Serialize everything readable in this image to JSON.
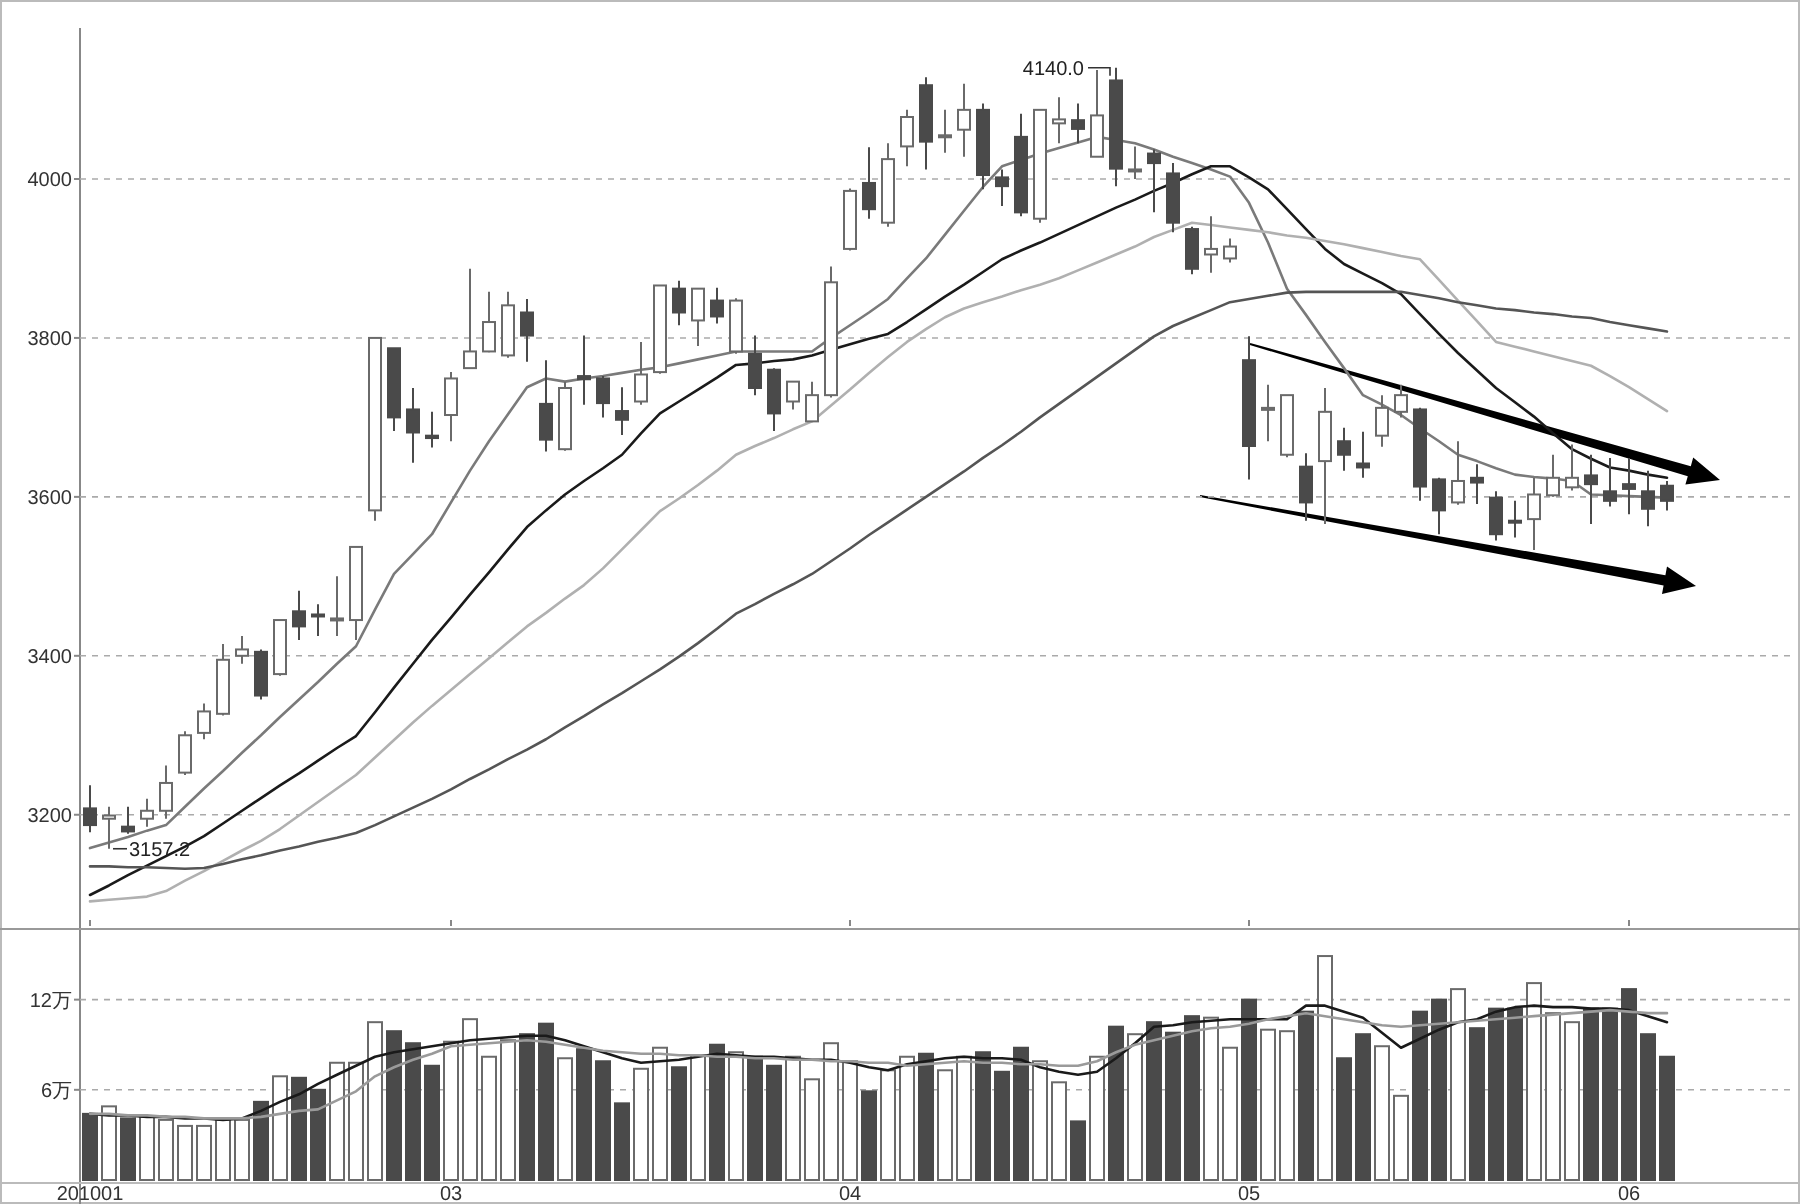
{
  "chart_data": [
    {
      "type": "candlestick",
      "ylim": [
        3060,
        4190
      ],
      "yticks": [
        3200,
        3400,
        3600,
        3800,
        4000
      ],
      "grid": "y",
      "tick_labels": "y",
      "categories": [
        "201001",
        null,
        null,
        null,
        null,
        null,
        null,
        null,
        null,
        null,
        null,
        null,
        null,
        null,
        null,
        null,
        null,
        null,
        null,
        "03",
        null,
        null,
        null,
        null,
        null,
        null,
        null,
        null,
        null,
        null,
        null,
        null,
        null,
        null,
        null,
        null,
        null,
        null,
        null,
        null,
        "04",
        null,
        null,
        null,
        null,
        null,
        null,
        null,
        null,
        null,
        null,
        null,
        null,
        null,
        null,
        null,
        null,
        null,
        null,
        null,
        null,
        "05",
        null,
        null,
        null,
        null,
        null,
        null,
        null,
        null,
        null,
        null,
        null,
        null,
        null,
        null,
        null,
        null,
        null,
        null,
        null,
        "06",
        null,
        null
      ],
      "ohlc": [
        [
          3208,
          3237,
          3178,
          3187
        ],
        [
          3195,
          3210,
          3157.2,
          3199
        ],
        [
          3185,
          3210,
          3176,
          3179
        ],
        [
          3195,
          3220,
          3185,
          3205
        ],
        [
          3205,
          3262,
          3195,
          3240
        ],
        [
          3253,
          3305,
          3250,
          3300
        ],
        [
          3303,
          3340,
          3295,
          3330
        ],
        [
          3327,
          3415,
          3325,
          3395
        ],
        [
          3400,
          3425,
          3390,
          3408
        ],
        [
          3405,
          3408,
          3345,
          3350
        ],
        [
          3377,
          3445,
          3375,
          3445
        ],
        [
          3456,
          3482,
          3420,
          3437
        ],
        [
          3452,
          3465,
          3425,
          3451
        ],
        [
          3445,
          3500,
          3425,
          3447
        ],
        [
          3445,
          3537,
          3420,
          3537
        ],
        [
          3583,
          3800,
          3570,
          3800
        ],
        [
          3787,
          3787,
          3683,
          3700
        ],
        [
          3710,
          3737,
          3643,
          3681
        ],
        [
          3677,
          3707,
          3662,
          3674
        ],
        [
          3703,
          3757,
          3670,
          3749
        ],
        [
          3762,
          3887,
          3762,
          3783
        ],
        [
          3783,
          3858,
          3782,
          3820
        ],
        [
          3778,
          3858,
          3775,
          3841
        ],
        [
          3832,
          3849,
          3770,
          3803
        ],
        [
          3717,
          3772,
          3657,
          3672
        ],
        [
          3660,
          3745,
          3658,
          3737
        ],
        [
          3752,
          3803,
          3716,
          3748
        ],
        [
          3749,
          3752,
          3700,
          3718
        ],
        [
          3708,
          3738,
          3678,
          3697
        ],
        [
          3720,
          3795,
          3716,
          3754
        ],
        [
          3757,
          3866,
          3755,
          3866
        ],
        [
          3862,
          3872,
          3816,
          3832
        ],
        [
          3822,
          3862,
          3790,
          3862
        ],
        [
          3847,
          3863,
          3818,
          3827
        ],
        [
          3783,
          3850,
          3780,
          3847
        ],
        [
          3780,
          3803,
          3728,
          3737
        ],
        [
          3760,
          3762,
          3683,
          3705
        ],
        [
          3720,
          3745,
          3710,
          3745
        ],
        [
          3695,
          3745,
          3695,
          3728
        ],
        [
          3728,
          3890,
          3725,
          3870
        ],
        [
          3912,
          3988,
          3910,
          3985
        ],
        [
          3995,
          4040,
          3950,
          3962
        ],
        [
          3945,
          4045,
          3940,
          4025
        ],
        [
          4041,
          4087,
          4016,
          4078
        ],
        [
          4118,
          4128,
          4012,
          4047
        ],
        [
          4053,
          4087,
          4033,
          4055
        ],
        [
          4062,
          4120,
          4028,
          4087
        ],
        [
          4087,
          4095,
          3987,
          4005
        ],
        [
          4002,
          4012,
          3966,
          3991
        ],
        [
          4053,
          4082,
          3953,
          3958
        ],
        [
          3950,
          4087,
          3945,
          4087
        ],
        [
          4070,
          4103,
          4045,
          4075
        ],
        [
          4074,
          4095,
          4045,
          4063
        ],
        [
          4028,
          4137,
          4028,
          4080
        ],
        [
          4124,
          4140,
          3991,
          4013
        ],
        [
          4010,
          4041,
          4000,
          4012
        ],
        [
          4032,
          4037,
          3958,
          4020
        ],
        [
          4007,
          4020,
          3933,
          3945
        ],
        [
          3937,
          3940,
          3880,
          3887
        ],
        [
          3905,
          3953,
          3882,
          3912
        ],
        [
          3900,
          3925,
          3895,
          3915
        ],
        [
          3772,
          3802,
          3622,
          3664
        ],
        [
          3710,
          3741,
          3670,
          3712
        ],
        [
          3653,
          3728,
          3650,
          3728
        ],
        [
          3638,
          3655,
          3570,
          3593
        ],
        [
          3645,
          3737,
          3566,
          3707
        ],
        [
          3670,
          3687,
          3633,
          3653
        ],
        [
          3642,
          3682,
          3624,
          3637
        ],
        [
          3677,
          3728,
          3663,
          3712
        ],
        [
          3707,
          3741,
          3700,
          3728
        ],
        [
          3710,
          3712,
          3595,
          3613
        ],
        [
          3622,
          3624,
          3553,
          3583
        ],
        [
          3593,
          3670,
          3590,
          3620
        ],
        [
          3624,
          3641,
          3591,
          3618
        ],
        [
          3599,
          3607,
          3545,
          3553
        ],
        [
          3570,
          3595,
          3549,
          3568
        ],
        [
          3572,
          3624,
          3533,
          3603
        ],
        [
          3602,
          3653,
          3600,
          3624
        ],
        [
          3612,
          3666,
          3608,
          3624
        ],
        [
          3627,
          3653,
          3566,
          3616
        ],
        [
          3607,
          3649,
          3588,
          3595
        ],
        [
          3616,
          3649,
          3578,
          3610
        ],
        [
          3607,
          3633,
          3563,
          3585
        ],
        [
          3614,
          3620,
          3583,
          3595
        ]
      ],
      "series": [
        {
          "type": "line",
          "color": "#7a7a7a",
          "values": [
            3158,
            3165,
            3172,
            3180,
            3187,
            3210,
            3233,
            3255,
            3278,
            3300,
            3323,
            3345,
            3367,
            3390,
            3412,
            3458,
            3503,
            3528,
            3553,
            3593,
            3633,
            3670,
            3704,
            3738,
            3749,
            3745,
            3749,
            3752,
            3756,
            3760,
            3763,
            3768,
            3773,
            3778,
            3783,
            3783,
            3783,
            3783,
            3783,
            3800,
            3816,
            3832,
            3849,
            3875,
            3900,
            3930,
            3960,
            3990,
            4016,
            4024,
            4032,
            4039,
            4046,
            4053,
            4049,
            4045,
            4037,
            4028,
            4020,
            4012,
            4003,
            3970,
            3920,
            3862,
            3829,
            3795,
            3762,
            3728,
            3716,
            3703,
            3686,
            3670,
            3653,
            3645,
            3636,
            3628,
            3625,
            3623,
            3620,
            3603,
            3602,
            3601,
            3600,
            3599
          ]
        },
        {
          "type": "line",
          "color": "#1a1a1a",
          "values": [
            3099,
            3111,
            3124,
            3136,
            3148,
            3160,
            3173,
            3189,
            3205,
            3221,
            3237,
            3252,
            3268,
            3284,
            3299,
            3329,
            3360,
            3390,
            3420,
            3448,
            3477,
            3505,
            3534,
            3562,
            3583,
            3603,
            3620,
            3636,
            3653,
            3680,
            3705,
            3720,
            3735,
            3750,
            3766,
            3768,
            3771,
            3773,
            3778,
            3785,
            3792,
            3799,
            3805,
            3820,
            3836,
            3852,
            3867,
            3883,
            3899,
            3910,
            3920,
            3931,
            3942,
            3953,
            3964,
            3974,
            3985,
            3995,
            4006,
            4016,
            4016,
            4002,
            3987,
            3962,
            3937,
            3912,
            3893,
            3881,
            3869,
            3855,
            3830,
            3805,
            3781,
            3759,
            3737,
            3719,
            3701,
            3680,
            3660,
            3648,
            3637,
            3633,
            3628,
            3624
          ]
        },
        {
          "type": "line",
          "color": "#b0b0b0",
          "values": [
            3091,
            3093,
            3095,
            3097,
            3104,
            3117,
            3129,
            3142,
            3155,
            3167,
            3182,
            3199,
            3216,
            3233,
            3250,
            3272,
            3294,
            3316,
            3337,
            3357,
            3377,
            3397,
            3417,
            3437,
            3454,
            3472,
            3489,
            3510,
            3534,
            3558,
            3582,
            3598,
            3615,
            3633,
            3653,
            3664,
            3674,
            3685,
            3695,
            3715,
            3735,
            3756,
            3776,
            3795,
            3811,
            3826,
            3837,
            3845,
            3852,
            3860,
            3867,
            3875,
            3885,
            3895,
            3905,
            3915,
            3927,
            3936,
            3945,
            3942,
            3939,
            3936,
            3933,
            3929,
            3926,
            3922,
            3918,
            3913,
            3908,
            3903,
            3899,
            3873,
            3847,
            3821,
            3795,
            3789,
            3783,
            3777,
            3771,
            3765,
            3752,
            3738,
            3723,
            3708
          ]
        },
        {
          "type": "line",
          "color": "#555555",
          "values": [
            3135,
            3135,
            3134,
            3134,
            3133,
            3132,
            3133,
            3138,
            3144,
            3149,
            3155,
            3160,
            3166,
            3171,
            3177,
            3187,
            3198,
            3209,
            3220,
            3232,
            3245,
            3257,
            3270,
            3282,
            3295,
            3310,
            3324,
            3339,
            3353,
            3368,
            3383,
            3399,
            3416,
            3434,
            3453,
            3465,
            3478,
            3490,
            3503,
            3519,
            3535,
            3552,
            3568,
            3584,
            3600,
            3616,
            3632,
            3649,
            3665,
            3682,
            3700,
            3717,
            3734,
            3751,
            3768,
            3785,
            3802,
            3815,
            3825,
            3835,
            3845,
            3849,
            3853,
            3857,
            3858,
            3858,
            3858,
            3858,
            3858,
            3858,
            3854,
            3850,
            3845,
            3841,
            3837,
            3835,
            3832,
            3830,
            3827,
            3825,
            3820,
            3816,
            3812,
            3808
          ]
        }
      ],
      "annotations": [
        "4140.0",
        "3157.2"
      ]
    },
    {
      "type": "bar",
      "ylim": [
        0,
        16.5
      ],
      "yticks": [
        {
          "value": 6,
          "label": "6万"
        },
        {
          "value": 12,
          "label": "12万"
        }
      ],
      "grid": "y",
      "categories": [
        "201001",
        null,
        null,
        null,
        null,
        null,
        null,
        null,
        null,
        null,
        null,
        null,
        null,
        null,
        null,
        null,
        null,
        null,
        null,
        "03",
        null,
        null,
        null,
        null,
        null,
        null,
        null,
        null,
        null,
        null,
        null,
        null,
        null,
        null,
        null,
        null,
        null,
        null,
        null,
        null,
        "04",
        null,
        null,
        null,
        null,
        null,
        null,
        null,
        null,
        null,
        null,
        null,
        null,
        null,
        null,
        null,
        null,
        null,
        null,
        null,
        null,
        "05",
        null,
        null,
        null,
        null,
        null,
        null,
        null,
        null,
        null,
        null,
        null,
        null,
        null,
        null,
        null,
        null,
        null,
        null,
        null,
        "06",
        null,
        null
      ],
      "series": [
        {
          "type": "bar",
          "values": [
            4.4,
            4.9,
            4.1,
            4.2,
            4.0,
            3.6,
            3.6,
            4.0,
            4.0,
            5.2,
            6.9,
            6.8,
            6.0,
            7.8,
            7.8,
            10.5,
            9.9,
            9.1,
            7.6,
            9.2,
            10.7,
            8.2,
            9.3,
            9.7,
            10.4,
            8.1,
            8.7,
            7.9,
            5.1,
            7.4,
            8.8,
            7.5,
            8.3,
            9.0,
            8.5,
            8.2,
            7.6,
            8.2,
            6.7,
            9.1,
            7.9,
            5.9,
            7.3,
            8.2,
            8.4,
            7.3,
            8.2,
            8.5,
            7.2,
            8.8,
            7.9,
            6.5,
            3.9,
            8.2,
            10.2,
            9.7,
            10.5,
            9.8,
            10.9,
            10.8,
            8.8,
            12.0,
            10.0,
            9.9,
            11.2,
            14.9,
            8.1,
            9.7,
            8.9,
            5.6,
            11.2,
            12.0,
            12.7,
            10.1,
            11.4,
            11.4,
            13.1,
            11.1,
            10.5,
            11.4,
            11.4,
            12.7,
            9.7,
            8.2
          ],
          "colors": [
            "#4a4a4a",
            "#ffffff",
            "#4a4a4a",
            "#ffffff",
            "#ffffff",
            "#ffffff",
            "#ffffff",
            "#ffffff",
            "#ffffff",
            "#4a4a4a",
            "#ffffff",
            "#4a4a4a",
            "#4a4a4a",
            "#ffffff",
            "#ffffff",
            "#ffffff",
            "#4a4a4a",
            "#4a4a4a",
            "#4a4a4a",
            "#ffffff",
            "#ffffff",
            "#ffffff",
            "#ffffff",
            "#4a4a4a",
            "#4a4a4a",
            "#ffffff",
            "#4a4a4a",
            "#4a4a4a",
            "#4a4a4a",
            "#ffffff",
            "#ffffff",
            "#4a4a4a",
            "#ffffff",
            "#4a4a4a",
            "#ffffff",
            "#4a4a4a",
            "#4a4a4a",
            "#ffffff",
            "#ffffff",
            "#ffffff",
            "#ffffff",
            "#4a4a4a",
            "#ffffff",
            "#ffffff",
            "#4a4a4a",
            "#ffffff",
            "#ffffff",
            "#4a4a4a",
            "#4a4a4a",
            "#4a4a4a",
            "#ffffff",
            "#ffffff",
            "#4a4a4a",
            "#ffffff",
            "#4a4a4a",
            "#ffffff",
            "#4a4a4a",
            "#4a4a4a",
            "#4a4a4a",
            "#ffffff",
            "#ffffff",
            "#4a4a4a",
            "#ffffff",
            "#ffffff",
            "#4a4a4a",
            "#ffffff",
            "#4a4a4a",
            "#4a4a4a",
            "#ffffff",
            "#ffffff",
            "#4a4a4a",
            "#4a4a4a",
            "#ffffff",
            "#4a4a4a",
            "#4a4a4a",
            "#4a4a4a",
            "#ffffff",
            "#ffffff",
            "#ffffff",
            "#4a4a4a",
            "#4a4a4a",
            "#4a4a4a",
            "#4a4a4a",
            "#4a4a4a"
          ]
        },
        {
          "type": "line",
          "color": "#1a1a1a",
          "values": [
            4.4,
            4.3,
            4.3,
            4.2,
            4.2,
            4.1,
            4.1,
            4.0,
            4.1,
            4.6,
            5.2,
            5.7,
            6.4,
            7.0,
            7.6,
            8.2,
            8.5,
            8.7,
            8.9,
            9.1,
            9.3,
            9.4,
            9.5,
            9.6,
            9.6,
            9.3,
            8.9,
            8.5,
            8.1,
            7.8,
            7.9,
            8.0,
            8.2,
            8.4,
            8.3,
            8.2,
            8.2,
            8.1,
            8.0,
            8.0,
            7.8,
            7.5,
            7.3,
            7.7,
            7.9,
            8.1,
            8.2,
            8.1,
            8.1,
            8.0,
            7.5,
            7.2,
            7.0,
            7.2,
            8.1,
            9.1,
            10.2,
            10.3,
            10.5,
            10.6,
            10.7,
            10.7,
            10.7,
            10.7,
            11.6,
            11.6,
            11.2,
            10.8,
            9.8,
            8.8,
            9.4,
            10.0,
            10.5,
            10.7,
            11.2,
            11.5,
            11.6,
            11.5,
            11.5,
            11.4,
            11.4,
            11.3,
            10.9,
            10.5
          ]
        },
        {
          "type": "line",
          "color": "#9a9a9a",
          "values": [
            4.4,
            4.4,
            4.3,
            4.3,
            4.2,
            4.2,
            4.1,
            4.1,
            4.1,
            4.2,
            4.4,
            4.6,
            4.7,
            5.3,
            5.9,
            6.9,
            7.5,
            8.0,
            8.4,
            8.9,
            9.0,
            9.1,
            9.2,
            9.3,
            9.2,
            9.0,
            8.8,
            8.6,
            8.5,
            8.4,
            8.4,
            8.3,
            8.3,
            8.2,
            8.2,
            8.1,
            8.1,
            8.0,
            8.0,
            7.9,
            7.9,
            7.8,
            7.8,
            7.6,
            7.7,
            7.8,
            7.9,
            7.8,
            7.8,
            7.7,
            7.7,
            7.6,
            7.6,
            7.9,
            8.5,
            9.0,
            9.3,
            9.6,
            9.9,
            10.1,
            10.2,
            10.4,
            10.7,
            10.9,
            11.1,
            10.9,
            10.7,
            10.5,
            10.3,
            10.2,
            10.3,
            10.4,
            10.5,
            10.6,
            10.7,
            10.8,
            10.9,
            11.0,
            11.1,
            11.2,
            11.3,
            11.2,
            11.1,
            11.1
          ]
        }
      ]
    }
  ]
}
